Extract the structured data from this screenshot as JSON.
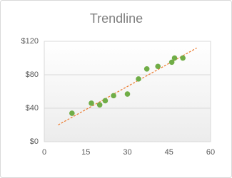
{
  "chart_data": {
    "type": "scatter",
    "title": "Trendline",
    "series": [
      {
        "color": "#70ad47",
        "x": [
          10,
          17,
          20,
          22,
          25,
          30,
          34,
          37,
          41,
          46,
          47,
          50
        ],
        "values": [
          34,
          46,
          44,
          49,
          55,
          57,
          75,
          87,
          90,
          95,
          100,
          100
        ]
      }
    ],
    "trendline": {
      "color": "#ed7d31",
      "x": [
        5,
        55
      ],
      "values": [
        20,
        112
      ]
    },
    "xlim": [
      0,
      60
    ],
    "xticks": [
      0,
      15,
      30,
      45,
      60
    ],
    "ylim": [
      0,
      120
    ],
    "yticks": [
      {
        "value": 0,
        "label": "$0"
      },
      {
        "value": 40,
        "label": "$40"
      },
      {
        "value": 80,
        "label": "$80"
      },
      {
        "value": 120,
        "label": "$120"
      }
    ],
    "grid": true
  }
}
